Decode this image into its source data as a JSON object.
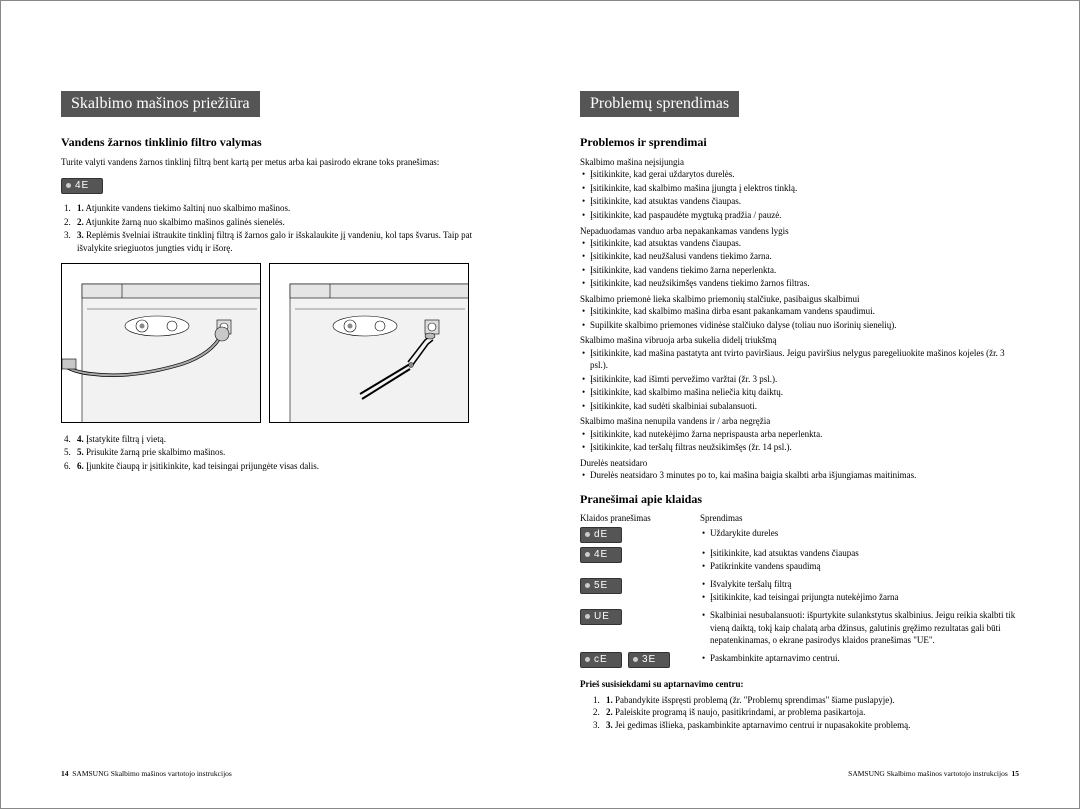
{
  "left": {
    "title": "Skalbimo mašinos priežiūra",
    "section_title": "Vandens žarnos tinklinio filtro valymas",
    "intro": "Turite valyti vandens žarnos tinklinį filtrą bent kartą per metus arba kai pasirodo ekrane toks pranešimas:",
    "error_code": "4E",
    "steps1": [
      "Atjunkite vandens tiekimo šaltinį nuo skalbimo mašinos.",
      "Atjunkite žarną nuo skalbimo mašinos galinės sienelės.",
      "Replėmis švelniai ištraukite tinklinį filtrą iš žarnos galo ir išskalaukite jį vandeniu, kol taps švarus. Taip pat išvalykite sriegiuotos jungties vidų ir išorę."
    ],
    "steps2": [
      "Įstatykite filtrą į vietą.",
      "Prisukite žarną prie skalbimo mašinos.",
      "Įjunkite čiaupą ir įsitikinkite, kad teisingai prijungėte visas dalis."
    ],
    "footer_page": "14",
    "footer_text": "SAMSUNG Skalbimo mašinos vartotojo instrukcijos"
  },
  "right": {
    "title": "Problemų sprendimas",
    "section_title": "Problemos ir sprendimai",
    "groups": [
      {
        "title": "Skalbimo mašina neįsijungia",
        "items": [
          "Įsitikinkite, kad gerai uždarytos durelės.",
          "Įsitikinkite, kad skalbimo mašina įjungta į elektros tinklą.",
          "Įsitikinkite, kad atsuktas vandens čiaupas.",
          "Įsitikinkite, kad paspaudėte mygtuką pradžia / pauzė."
        ]
      },
      {
        "title": "Nepaduodamas vanduo arba nepakankamas vandens lygis",
        "items": [
          "Įsitikinkite, kad atsuktas vandens čiaupas.",
          "Įsitikinkite, kad neužšalusi vandens tiekimo žarna.",
          "Įsitikinkite, kad vandens tiekimo žarna neperlenkta.",
          "Įsitikinkite, kad neužsikimšęs vandens tiekimo žarnos filtras."
        ]
      },
      {
        "title": "Skalbimo priemonė lieka skalbimo priemonių stalčiuke, pasibaigus skalbimui",
        "items": [
          "Įsitikinkite, kad skalbimo mašina dirba esant pakankamam vandens spaudimui.",
          "Supilkite skalbimo priemones vidinėse stalčiuko dalyse (toliau nuo išorinių sienelių)."
        ]
      },
      {
        "title": "Skalbimo mašina vibruoja arba sukelia didelį triukšmą",
        "items": [
          "Įsitikinkite, kad mašina pastatyta ant tvirto paviršiaus. Jeigu paviršius nelygus paregeliuokite mašinos kojeles (žr. 3 psl.).",
          "Įsitikinkite, kad išimti pervežimo varžtai (žr. 3 psl.).",
          "Įsitikinkite, kad skalbimo mašina neliečia kitų daiktų.",
          "Įsitikinkite, kad sudėti skalbiniai subalansuoti."
        ]
      },
      {
        "title": "Skalbimo mašina nenupila vandens ir / arba negręžia",
        "items": [
          "Įsitikinkite, kad nutekėjimo žarna neprispausta arba neperlenkta.",
          "Įsitikinkite, kad teršalų filtras neužsikimšęs (žr. 14 psl.)."
        ]
      },
      {
        "title": "Durelės neatsidaro",
        "items": [
          "Durelės neatsidaro 3 minutes po to, kai mašina baigia skalbti arba išjungiamas maitinimas."
        ]
      }
    ],
    "section_title2": "Pranešimai apie klaidas",
    "et_head1": "Klaidos pranešimas",
    "et_head2": "Sprendimas",
    "errors": [
      {
        "codes": [
          "dE"
        ],
        "sol": [
          "Uždarykite dureles"
        ]
      },
      {
        "codes": [
          "4E"
        ],
        "sol": [
          "Įsitikinkite, kad atsuktas vandens čiaupas",
          "Patikrinkite vandens spaudimą"
        ]
      },
      {
        "codes": [
          "5E"
        ],
        "sol": [
          "Išvalykite teršalų filtrą",
          "Įsitikinkite, kad teisingai prijungta nutekėjimo žarna"
        ]
      },
      {
        "codes": [
          "UE"
        ],
        "sol": [
          "Skalbiniai nesubalansuoti: išpurtykite sulankstytus skalbinius. Jeigu reikia skalbti tik vieną daiktą, tokį kaip chalatą arba džinsus, galutinis gręžimo rezultatas gali būti nepatenkinamas, o ekrane pasirodys klaidos pranešimas \"UE\"."
        ]
      },
      {
        "codes": [
          "cE",
          "3E"
        ],
        "sol": [
          "Paskambinkite aptarnavimo centrui."
        ]
      }
    ],
    "contact_title": "Prieš susisiekdami su aptarnavimo centru:",
    "contact_steps": [
      "Pabandykite išspręsti problemą (žr. \"Problemų sprendimas\" šiame puslapyje).",
      "Paleiskite programą iš naujo, pasitikrindami, ar problema pasikartoja.",
      "Jei gedimas išlieka, paskambinkite aptarnavimo centrui ir nupasakokite problemą."
    ],
    "footer_text": "SAMSUNG Skalbimo mašinos vartotojo instrukcijos",
    "footer_page": "15"
  },
  "colors": {
    "title_bg": "#5a5a5a",
    "badge_bg": "#555555",
    "border": "#888888"
  }
}
